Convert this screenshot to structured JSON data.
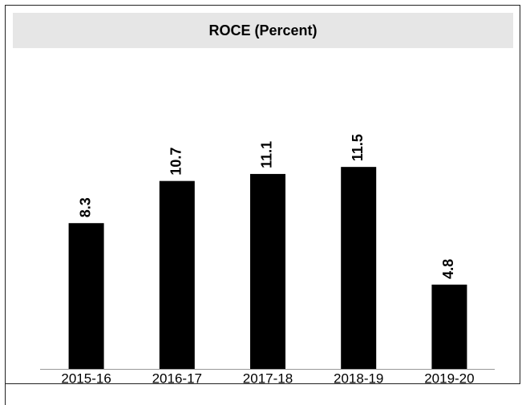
{
  "chart_data": {
    "type": "bar",
    "title": "ROCE (Percent)",
    "categories": [
      "2015-16",
      "2016-17",
      "2017-18",
      "2018-19",
      "2019-20"
    ],
    "values": [
      8.3,
      10.7,
      11.1,
      11.5,
      4.8
    ],
    "color": "#000000"
  }
}
